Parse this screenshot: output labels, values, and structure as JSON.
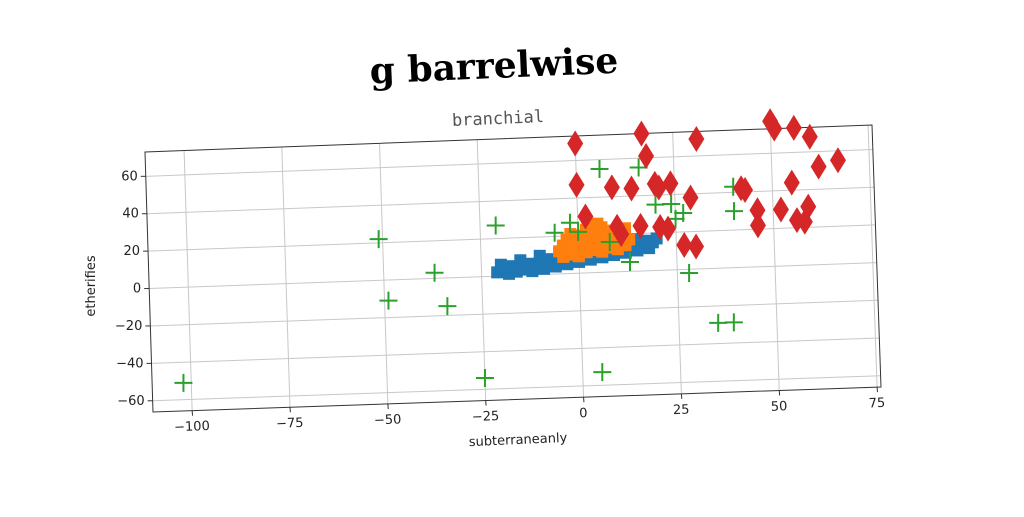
{
  "chart_data": {
    "type": "scatter",
    "title": "g barrelwise",
    "subtitle": "branchial",
    "xlabel": "subterraneanly",
    "ylabel": "etherifies",
    "xlim": [
      -110,
      76
    ],
    "ylim": [
      -66,
      73
    ],
    "xticks": [
      -100,
      -75,
      -50,
      -25,
      0,
      25,
      50,
      75
    ],
    "yticks": [
      -60,
      -40,
      -20,
      0,
      20,
      40,
      60
    ],
    "grid": true,
    "series": [
      {
        "marker": "square",
        "color": "#1f77b4",
        "points": [
          [
            -21,
            2
          ],
          [
            -20,
            3
          ],
          [
            -19,
            4
          ],
          [
            -18,
            1
          ],
          [
            -17,
            5
          ],
          [
            -16,
            2
          ],
          [
            -15,
            4
          ],
          [
            -14,
            3
          ],
          [
            -13,
            6
          ],
          [
            -12,
            2
          ],
          [
            -11,
            5
          ],
          [
            -10,
            7
          ],
          [
            -9,
            3
          ],
          [
            -8,
            6
          ],
          [
            -7,
            8
          ],
          [
            -6,
            4
          ],
          [
            -5,
            7
          ],
          [
            -4,
            9
          ],
          [
            -3,
            5
          ],
          [
            -2,
            8
          ],
          [
            -1,
            10
          ],
          [
            0,
            6
          ],
          [
            1,
            9
          ],
          [
            2,
            11
          ],
          [
            3,
            7
          ],
          [
            4,
            10
          ],
          [
            5,
            12
          ],
          [
            6,
            8
          ],
          [
            7,
            11
          ],
          [
            8,
            13
          ],
          [
            9,
            9
          ],
          [
            10,
            12
          ],
          [
            11,
            14
          ],
          [
            12,
            10
          ],
          [
            13,
            13
          ],
          [
            14,
            15
          ],
          [
            15,
            11
          ],
          [
            16,
            14
          ],
          [
            17,
            16
          ],
          [
            18,
            12
          ],
          [
            19,
            15
          ],
          [
            20,
            17
          ],
          [
            -20,
            6
          ],
          [
            -15,
            8
          ],
          [
            -10,
            10
          ],
          [
            -5,
            11
          ],
          [
            0,
            13
          ],
          [
            5,
            14
          ],
          [
            10,
            16
          ],
          [
            15,
            17
          ]
        ]
      },
      {
        "marker": "square",
        "color": "#ff7f0e",
        "points": [
          [
            -5,
            12
          ],
          [
            -4,
            15
          ],
          [
            -3,
            18
          ],
          [
            -2,
            21
          ],
          [
            -1,
            13
          ],
          [
            0,
            17
          ],
          [
            1,
            20
          ],
          [
            2,
            23
          ],
          [
            3,
            14
          ],
          [
            4,
            18
          ],
          [
            5,
            21
          ],
          [
            6,
            24
          ],
          [
            7,
            15
          ],
          [
            8,
            19
          ],
          [
            9,
            22
          ],
          [
            10,
            16
          ],
          [
            11,
            20
          ],
          [
            12,
            23
          ],
          [
            13,
            17
          ],
          [
            -4,
            9
          ],
          [
            -2,
            10
          ],
          [
            0,
            9
          ],
          [
            2,
            11
          ],
          [
            4,
            12
          ],
          [
            6,
            11
          ],
          [
            8,
            13
          ],
          [
            10,
            12
          ],
          [
            12,
            14
          ],
          [
            3,
            25
          ],
          [
            5,
            26
          ]
        ]
      },
      {
        "marker": "plus",
        "color": "#2ca02c",
        "points": [
          [
            -102,
            -51
          ],
          [
            -51,
            22
          ],
          [
            -49,
            -11
          ],
          [
            -37,
            3
          ],
          [
            -34,
            -15
          ],
          [
            -25,
            -54
          ],
          [
            -21,
            27
          ],
          [
            -6,
            22
          ],
          [
            -2,
            27
          ],
          [
            0,
            22
          ],
          [
            6,
            55
          ],
          [
            8,
            16
          ],
          [
            13,
            5
          ],
          [
            16,
            55
          ],
          [
            20,
            35
          ],
          [
            24,
            35
          ],
          [
            25,
            27
          ],
          [
            27,
            30
          ],
          [
            28,
            -2
          ],
          [
            35,
            -29
          ],
          [
            39,
            -29
          ],
          [
            40,
            30
          ],
          [
            40,
            43
          ],
          [
            5,
            -53
          ]
        ]
      },
      {
        "marker": "diamond",
        "color": "#d62728",
        "points": [
          [
            0,
            69
          ],
          [
            0,
            47
          ],
          [
            2,
            30
          ],
          [
            9,
            45
          ],
          [
            10,
            24
          ],
          [
            11,
            20
          ],
          [
            14,
            44
          ],
          [
            16,
            24
          ],
          [
            17,
            73
          ],
          [
            18,
            61
          ],
          [
            20,
            46
          ],
          [
            21,
            44
          ],
          [
            21,
            23
          ],
          [
            23,
            22
          ],
          [
            24,
            46
          ],
          [
            27,
            13
          ],
          [
            29,
            38
          ],
          [
            30,
            12
          ],
          [
            31,
            69
          ],
          [
            42,
            42
          ],
          [
            43,
            41
          ],
          [
            46,
            30
          ],
          [
            46,
            22
          ],
          [
            50,
            77
          ],
          [
            51,
            73
          ],
          [
            52,
            30
          ],
          [
            55,
            44
          ],
          [
            56,
            24
          ],
          [
            56,
            73
          ],
          [
            58,
            23
          ],
          [
            59,
            31
          ],
          [
            60,
            68
          ],
          [
            62,
            52
          ],
          [
            67,
            55
          ]
        ]
      }
    ]
  }
}
